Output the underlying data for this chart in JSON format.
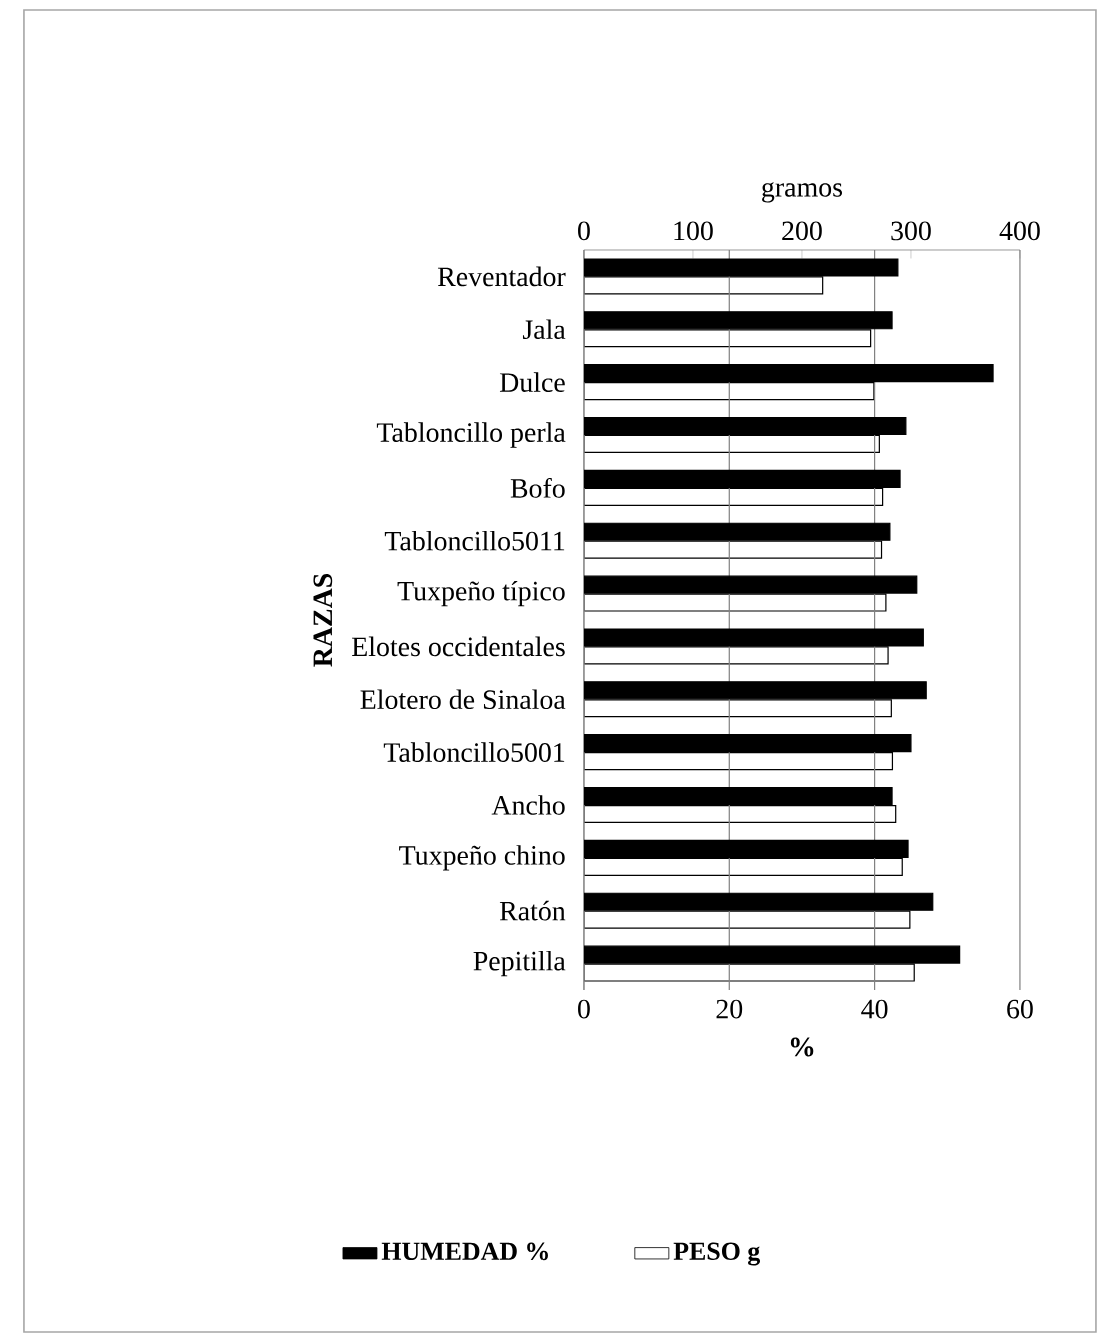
{
  "chart_data": {
    "type": "bar",
    "orientation": "horizontal",
    "categories": [
      "Reventador",
      "Jala",
      "Dulce",
      "Tabloncillo perla",
      "Bofo",
      "Tabloncillo5011",
      "Tuxpeño típico",
      "Elotes occidentales",
      "Elotero de Sinaloa",
      "Tabloncillo5001",
      "Ancho",
      "Tuxpeño chino",
      "Ratón",
      "Pepitilla"
    ],
    "xlabel": "%",
    "x2label": "gramos",
    "ylabel": "RAZAS",
    "xlim": [
      0,
      60
    ],
    "xticks": [
      0,
      20,
      40,
      60
    ],
    "x2lim": [
      0,
      400
    ],
    "x2ticks": [
      0,
      100,
      200,
      300,
      400
    ],
    "grid": "x",
    "legend": "bottom",
    "series": [
      {
        "name": "HUMEDAD %",
        "color": "#000000",
        "values": [
          43.2,
          42.4,
          56.3,
          44.3,
          43.5,
          42.1,
          45.8,
          46.7,
          47.1,
          45.0,
          42.4,
          44.6,
          48.0,
          51.7
        ]
      },
      {
        "name": "PESO g",
        "color": "#ffffff",
        "axis": "x2",
        "values": [
          219,
          263,
          266,
          271,
          274,
          273,
          277,
          279,
          282,
          283,
          286,
          292,
          299,
          303
        ]
      }
    ]
  }
}
